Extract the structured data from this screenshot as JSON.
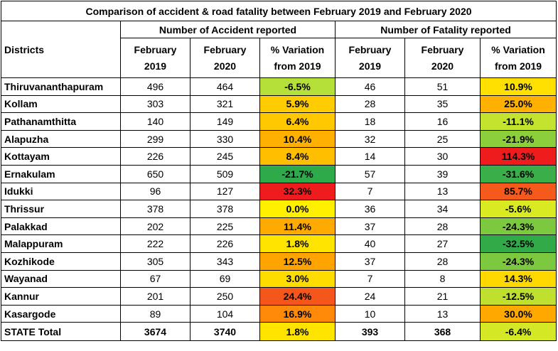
{
  "title": "Comparison of accident & road fatality between February 2019 and February 2020",
  "headers": {
    "districts": "Districts",
    "accident_group": "Number of Accident reported",
    "fatality_group": "Number of Fatality reported",
    "feb2019_line1": "February",
    "feb2019_line2": "2019",
    "feb2020_line1": "February",
    "feb2020_line2": "2020",
    "var_line1": "% Variation",
    "var_line2": "from 2019"
  },
  "rows": [
    {
      "district": "Thiruvananthapuram",
      "acc2019": "496",
      "acc2020": "464",
      "acc_var": "-6.5%",
      "acc_color": "#b5e03a",
      "fat2019": "46",
      "fat2020": "51",
      "fat_var": "10.9%",
      "fat_color": "#ffe000"
    },
    {
      "district": "Kollam",
      "acc2019": "303",
      "acc2020": "321",
      "acc_var": "5.9%",
      "acc_color": "#ffcc00",
      "fat2019": "28",
      "fat2020": "35",
      "fat_var": "25.0%",
      "fat_color": "#ffb000"
    },
    {
      "district": "Pathanamthitta",
      "acc2019": "140",
      "acc2020": "149",
      "acc_var": "6.4%",
      "acc_color": "#ffc800",
      "fat2019": "18",
      "fat2020": "16",
      "fat_var": "-11.1%",
      "fat_color": "#c4e32e"
    },
    {
      "district": "Alapuzha",
      "acc2019": "299",
      "acc2020": "330",
      "acc_var": "10.4%",
      "acc_color": "#ffb000",
      "fat2019": "32",
      "fat2020": "25",
      "fat_var": "-21.9%",
      "fat_color": "#8ccf3c"
    },
    {
      "district": "Kottayam",
      "acc2019": "226",
      "acc2020": "245",
      "acc_var": "8.4%",
      "acc_color": "#ffbe00",
      "fat2019": "14",
      "fat2020": "30",
      "fat_var": "114.3%",
      "fat_color": "#ee1c1c"
    },
    {
      "district": "Ernakulam",
      "acc2019": "650",
      "acc2020": "509",
      "acc_var": "-21.7%",
      "acc_color": "#2eaa4a",
      "fat2019": "57",
      "fat2020": "39",
      "fat_var": "-31.6%",
      "fat_color": "#3aae48"
    },
    {
      "district": "Idukki",
      "acc2019": "96",
      "acc2020": "127",
      "acc_var": "32.3%",
      "acc_color": "#ee1c1c",
      "fat2019": "7",
      "fat2020": "13",
      "fat_var": "85.7%",
      "fat_color": "#f55a1c"
    },
    {
      "district": "Thrissur",
      "acc2019": "378",
      "acc2020": "378",
      "acc_var": "0.0%",
      "acc_color": "#fff000",
      "fat2019": "36",
      "fat2020": "34",
      "fat_var": "-5.6%",
      "fat_color": "#daea22"
    },
    {
      "district": "Palakkad",
      "acc2019": "202",
      "acc2020": "225",
      "acc_var": "11.4%",
      "acc_color": "#ffaa00",
      "fat2019": "37",
      "fat2020": "28",
      "fat_var": "-24.3%",
      "fat_color": "#7cc83e"
    },
    {
      "district": "Malappuram",
      "acc2019": "222",
      "acc2020": "226",
      "acc_var": "1.8%",
      "acc_color": "#ffe400",
      "fat2019": "40",
      "fat2020": "27",
      "fat_var": "-32.5%",
      "fat_color": "#32aa48"
    },
    {
      "district": "Kozhikode",
      "acc2019": "305",
      "acc2020": "343",
      "acc_var": "12.5%",
      "acc_color": "#ffa400",
      "fat2019": "37",
      "fat2020": "28",
      "fat_var": "-24.3%",
      "fat_color": "#7cc83e"
    },
    {
      "district": "Wayanad",
      "acc2019": "67",
      "acc2020": "69",
      "acc_var": "3.0%",
      "acc_color": "#ffdc00",
      "fat2019": "7",
      "fat2020": "8",
      "fat_var": "14.3%",
      "fat_color": "#ffd800"
    },
    {
      "district": "Kannur",
      "acc2019": "201",
      "acc2020": "250",
      "acc_var": "24.4%",
      "acc_color": "#f5561c",
      "fat2019": "24",
      "fat2020": "21",
      "fat_var": "-12.5%",
      "fat_color": "#c0e030"
    },
    {
      "district": "Kasargode",
      "acc2019": "89",
      "acc2020": "104",
      "acc_var": "16.9%",
      "acc_color": "#ff8a0a",
      "fat2019": "10",
      "fat2020": "13",
      "fat_var": "30.0%",
      "fat_color": "#ffa800"
    }
  ],
  "total": {
    "district": "STATE Total",
    "acc2019": "3674",
    "acc2020": "3740",
    "acc_var": "1.8%",
    "acc_color": "#ffe400",
    "fat2019": "393",
    "fat2020": "368",
    "fat_var": "-6.4%",
    "fat_color": "#d4e826"
  }
}
